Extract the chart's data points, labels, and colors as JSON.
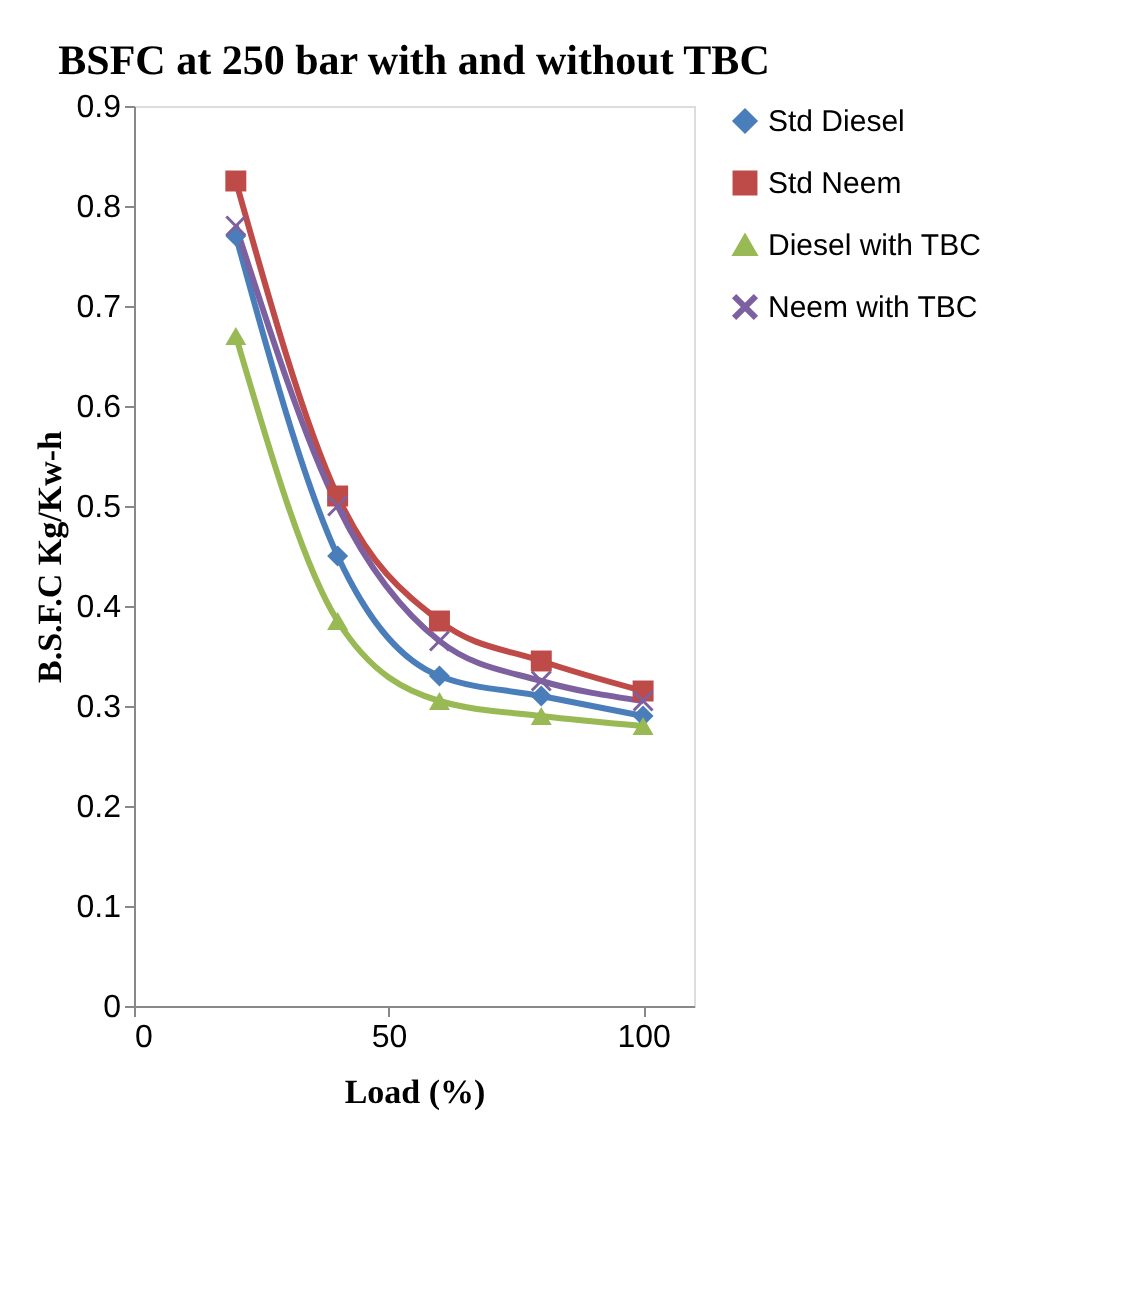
{
  "chart_data": {
    "type": "line",
    "title": "BSFC at 250 bar with and without TBC",
    "xlabel": "Load (%)",
    "ylabel": "B.S.F.C  Kg/Kw-h",
    "x": [
      20,
      40,
      60,
      80,
      100
    ],
    "series": [
      {
        "name": "Std Diesel",
        "color": "#4a7ebb",
        "marker": "diamond",
        "values": [
          0.77,
          0.45,
          0.33,
          0.31,
          0.29
        ]
      },
      {
        "name": "Std Neem",
        "color": "#be4b48",
        "marker": "square",
        "values": [
          0.825,
          0.51,
          0.385,
          0.345,
          0.315
        ]
      },
      {
        "name": "Diesel with TBC",
        "color": "#98b954",
        "marker": "triangle",
        "values": [
          0.67,
          0.385,
          0.305,
          0.29,
          0.28
        ]
      },
      {
        "name": "Neem with TBC",
        "color": "#7d60a0",
        "marker": "cross",
        "values": [
          0.78,
          0.5,
          0.365,
          0.325,
          0.305
        ]
      }
    ],
    "xlim": [
      0,
      110
    ],
    "xticks": [
      0,
      50,
      100
    ],
    "ylim": [
      0,
      0.9
    ],
    "yticks": [
      0,
      0.1,
      0.2,
      0.3,
      0.4,
      0.5,
      0.6,
      0.7,
      0.8,
      0.9
    ],
    "grid": false,
    "legend": "right",
    "line_style": "solid"
  }
}
